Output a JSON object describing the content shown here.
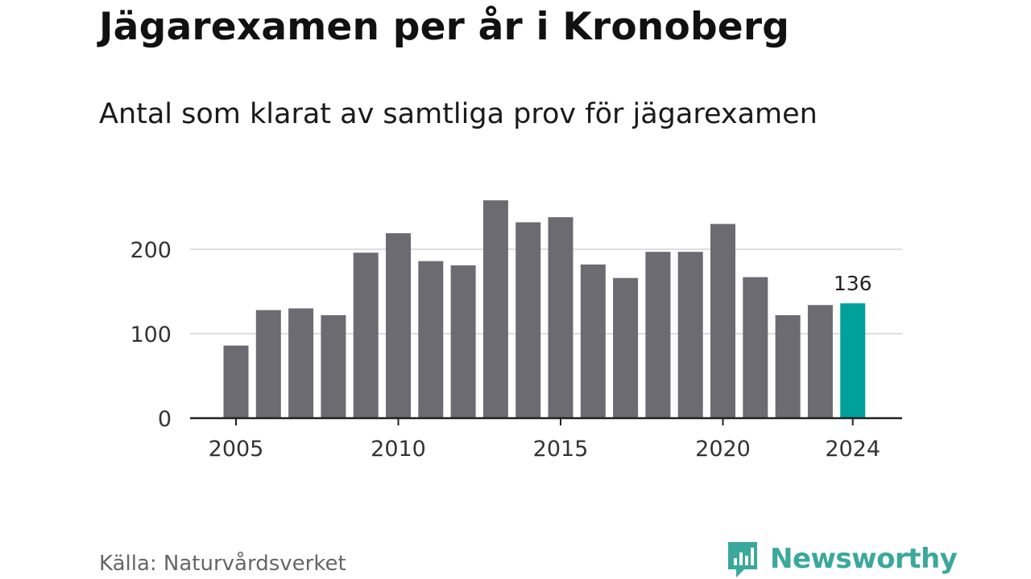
{
  "title": "Jägarexamen per år i Kronoberg",
  "subtitle": "Antal som klarat av samtliga prov för jägarexamen",
  "source": "Källa: Naturvårdsverket",
  "brand": {
    "name": "Newsworthy",
    "color": "#3aa89b",
    "icon": "bar-chart-speech-bubble-icon"
  },
  "colors": {
    "bar": "#6c6b72",
    "highlight": "#00a19a",
    "grid": "#dddddd",
    "axis": "#222222"
  },
  "chart_data": {
    "type": "bar",
    "categories": [
      "2005",
      "2006",
      "2007",
      "2008",
      "2009",
      "2010",
      "2011",
      "2012",
      "2013",
      "2014",
      "2015",
      "2016",
      "2017",
      "2018",
      "2019",
      "2020",
      "2021",
      "2022",
      "2023",
      "2024"
    ],
    "values": [
      86,
      128,
      130,
      122,
      196,
      219,
      186,
      181,
      258,
      232,
      238,
      182,
      166,
      197,
      197,
      230,
      167,
      122,
      134,
      136
    ],
    "highlight_index": 19,
    "highlight_label": "136",
    "ylim": [
      0,
      265
    ],
    "yticks": [
      0,
      100,
      200
    ],
    "xticks": [
      "2005",
      "2010",
      "2015",
      "2020",
      "2024"
    ],
    "grid": true
  }
}
